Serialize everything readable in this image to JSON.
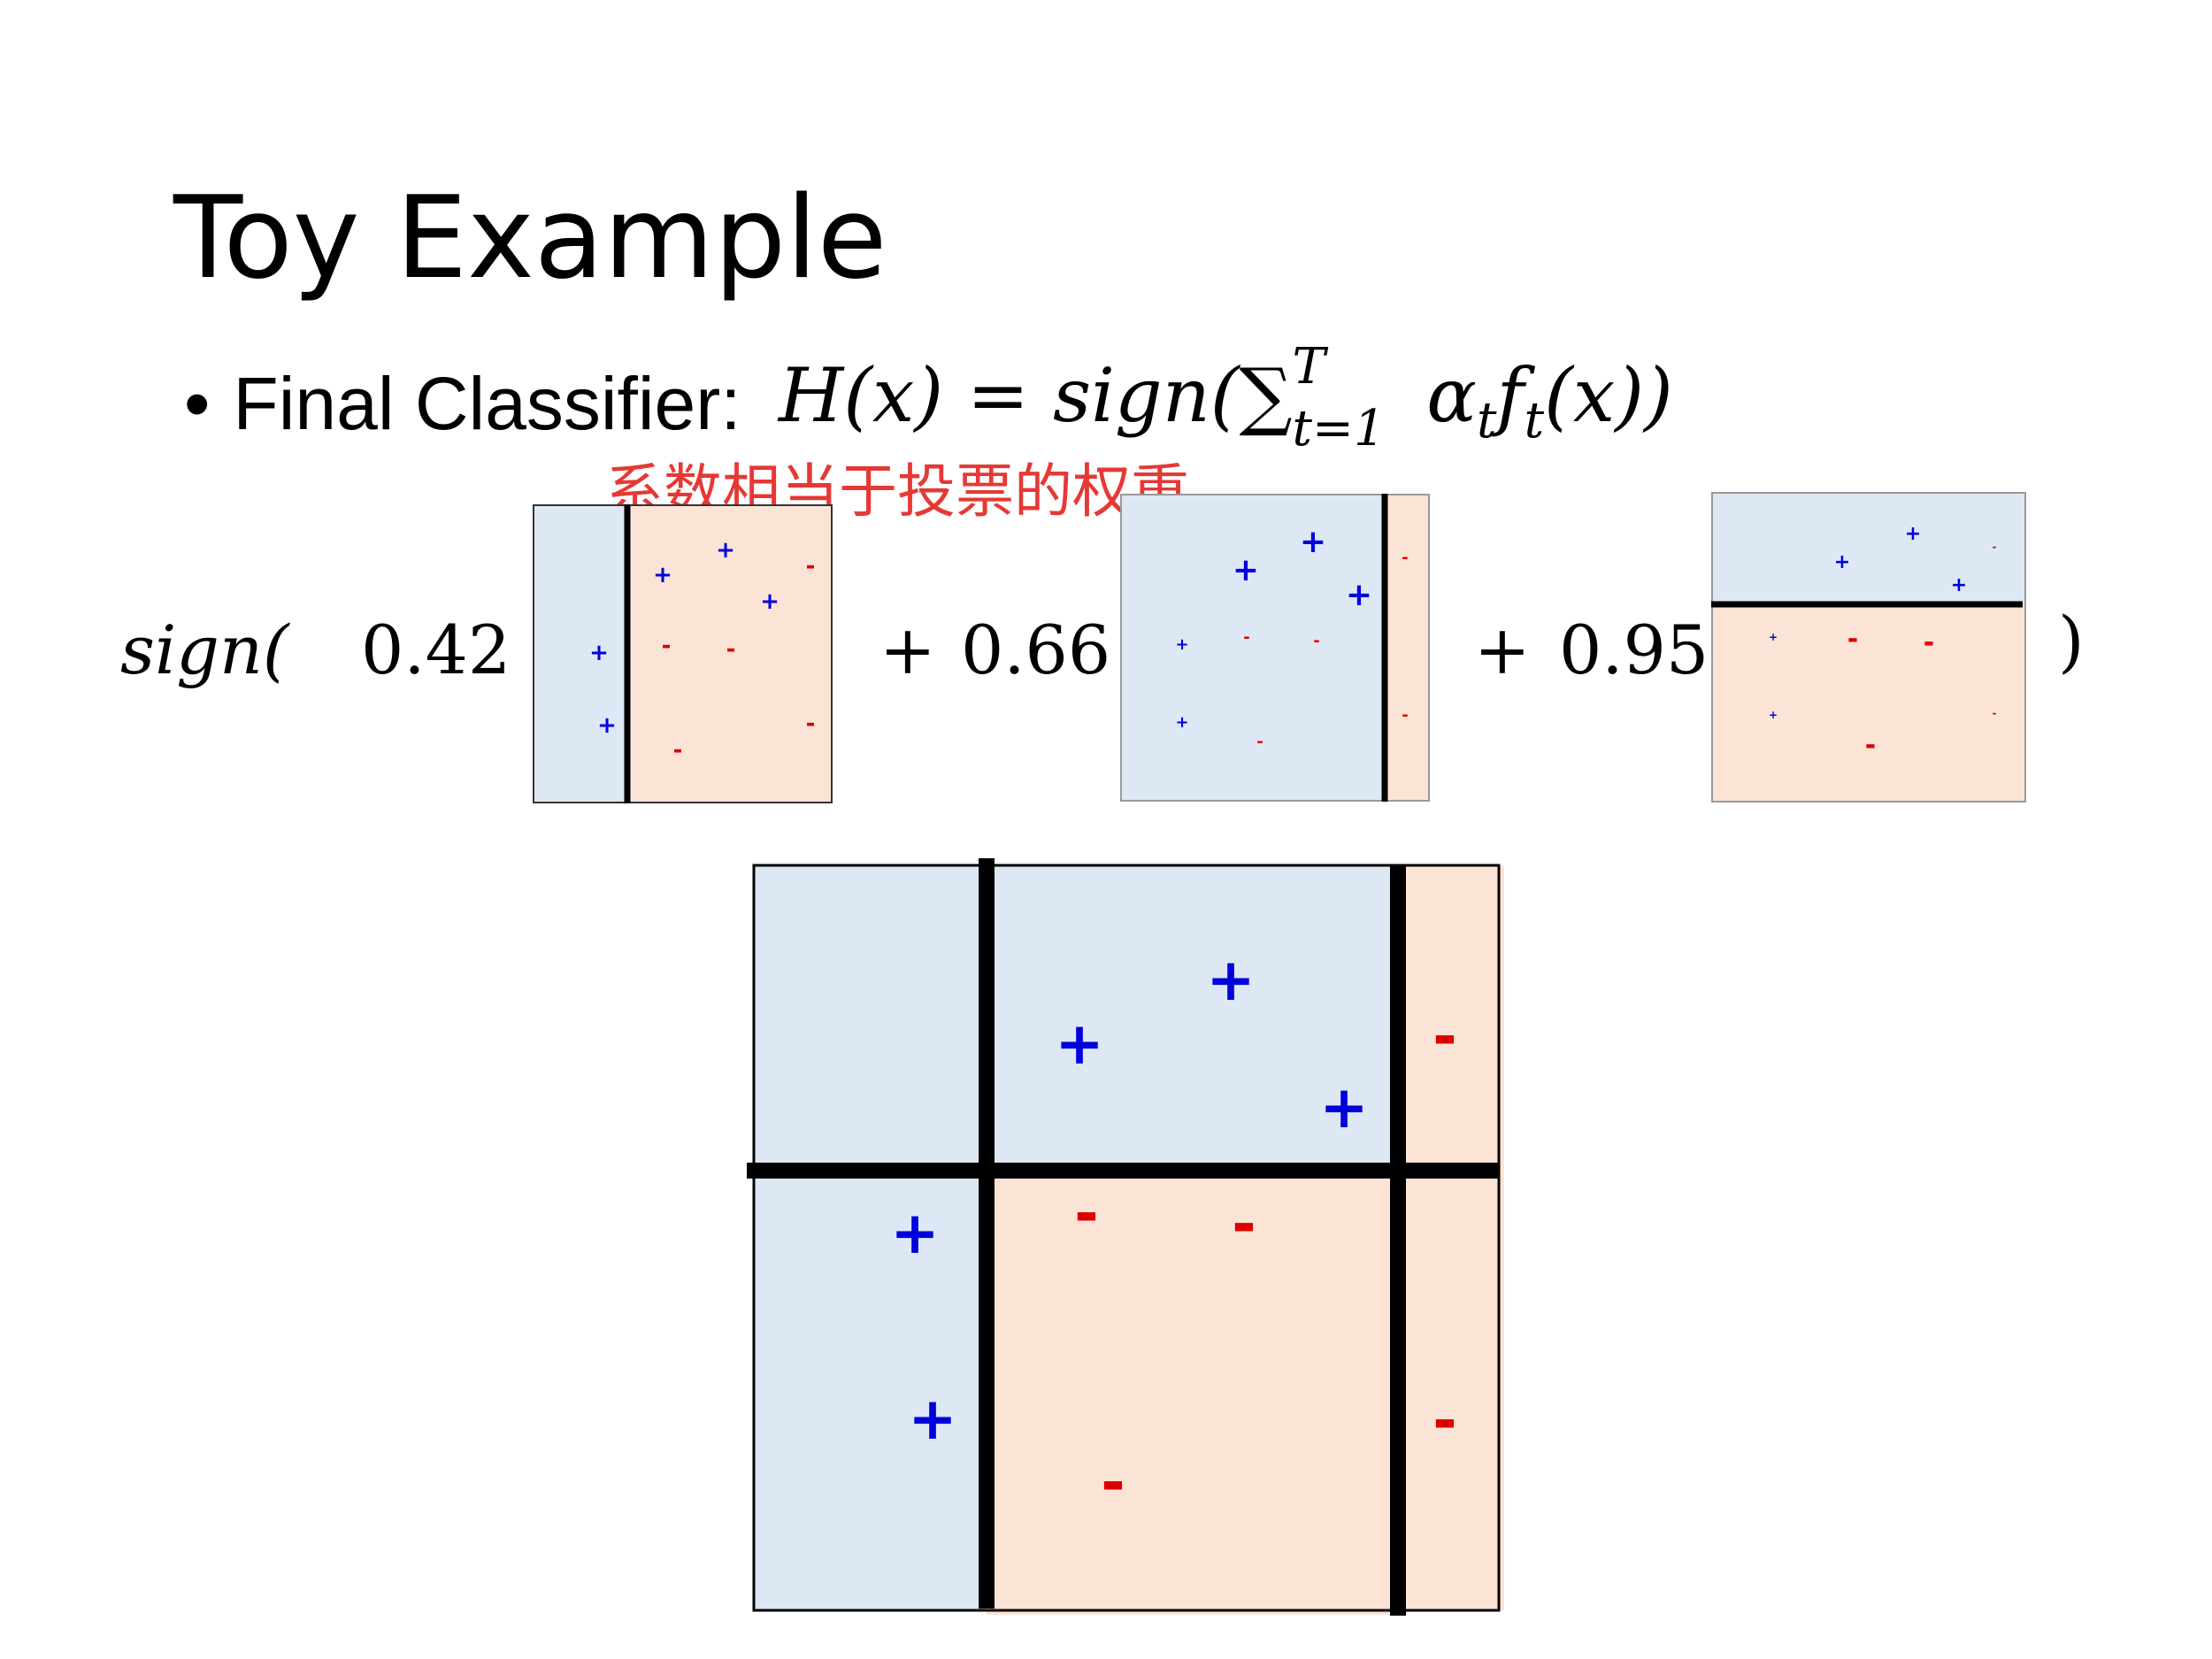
{
  "slide": {
    "title": "Toy Example",
    "bullet_label": "Final Classifier:",
    "formula_lhs": "H(x) = sign(",
    "formula_sum": "∑",
    "formula_sub": "t=1",
    "formula_sup": "T",
    "formula_rhs_a": "α",
    "formula_rhs_t1": "t",
    "formula_rhs_f": "f",
    "formula_rhs_t2": "t",
    "formula_rhs_end": "(x))",
    "note": "系数相当于投票的权重。"
  },
  "equation": {
    "sign_open": "sign(",
    "w1": "0.42",
    "plus1": "+",
    "w2": "0.66",
    "plus2": "+",
    "w3": "0.95",
    "close": ")"
  },
  "symbols": {
    "positive": "+",
    "negative": "-"
  },
  "colors": {
    "blue_region": "#dde8f4",
    "red_region": "#fbe4d6",
    "plus": "#0000dd",
    "minus": "#dd0000",
    "note": "#e53935",
    "line": "#000000"
  }
}
